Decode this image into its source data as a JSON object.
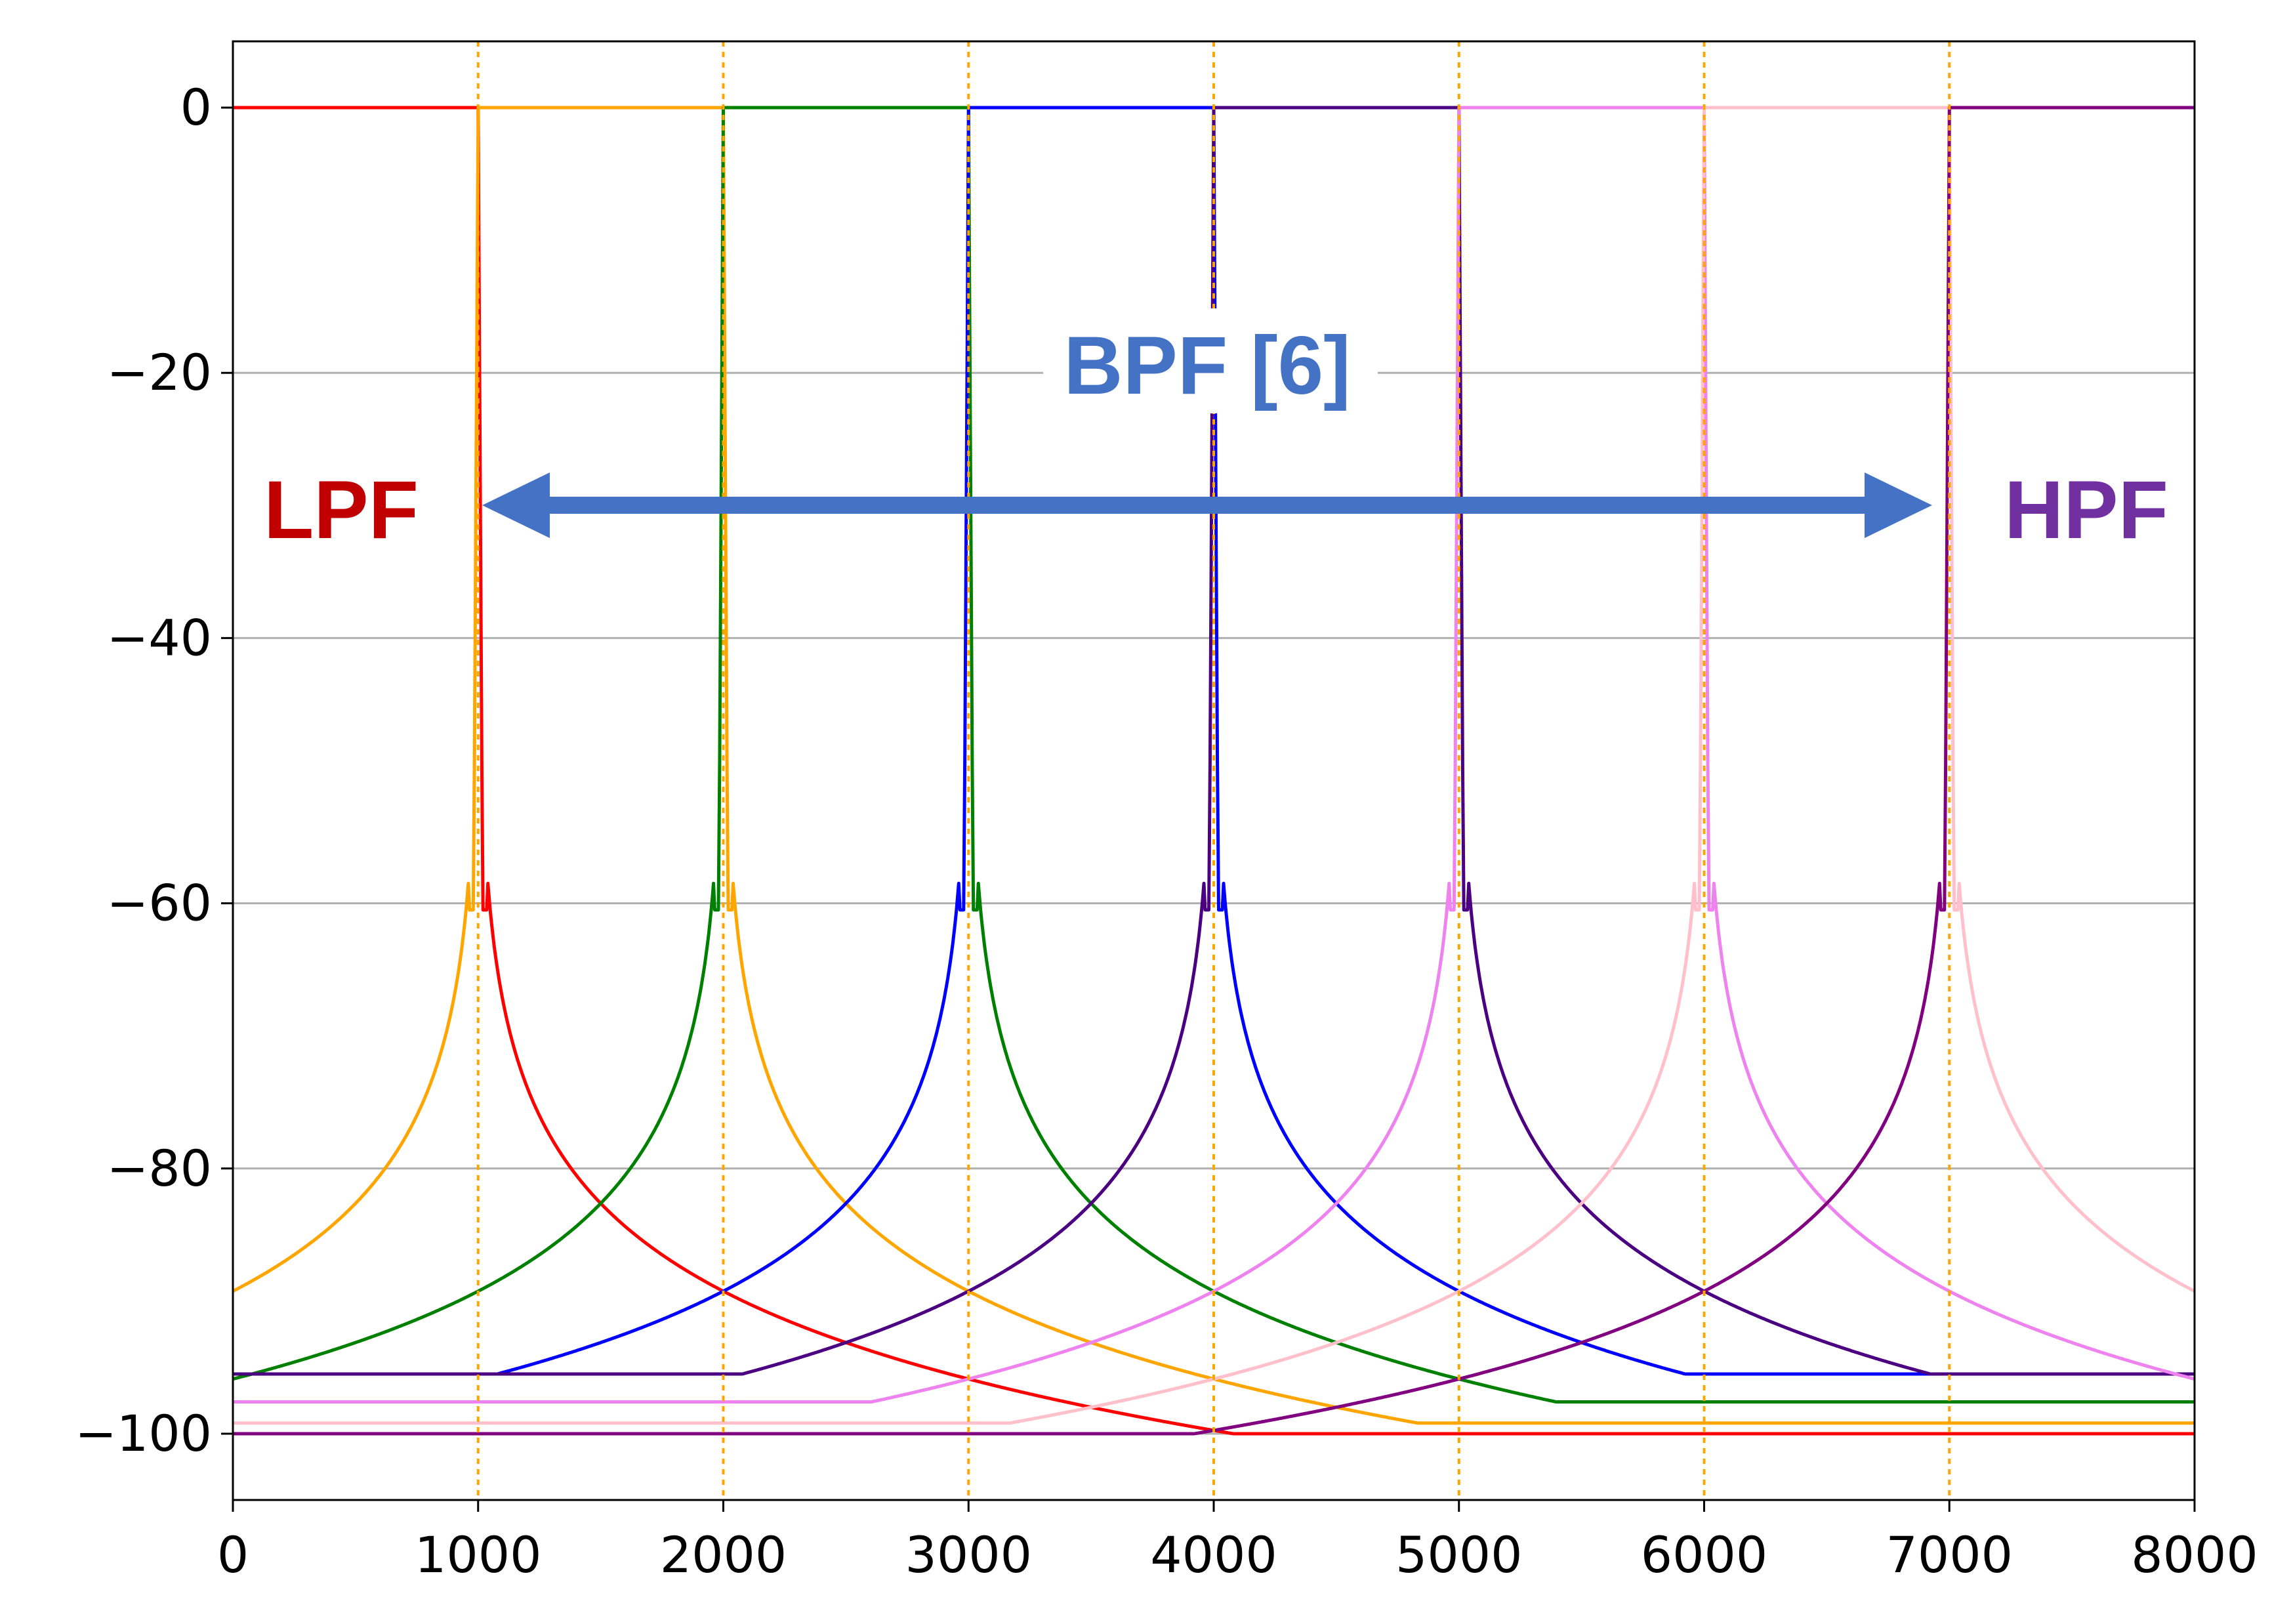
{
  "chart_data": {
    "type": "line",
    "xlim": [
      0,
      8000
    ],
    "ylim": [
      -105,
      5
    ],
    "x_ticks": [
      "0",
      "1000",
      "2000",
      "3000",
      "4000",
      "5000",
      "6000",
      "7000",
      "8000"
    ],
    "y_ticks": [
      "0",
      "−20",
      "−40",
      "−60",
      "−80",
      "−100"
    ],
    "grid": "horizontal",
    "band_edges": [
      1000,
      2000,
      3000,
      4000,
      5000,
      6000,
      7000
    ],
    "band_edge_color": "#ffa500",
    "series": [
      {
        "color": "#ff0000",
        "band": [
          0,
          1000
        ],
        "min_db": -100
      },
      {
        "color": "#ffa500",
        "band": [
          1000,
          2000
        ],
        "min_db": -99.2
      },
      {
        "color": "#008000",
        "band": [
          2000,
          3000
        ],
        "min_db": -97.6
      },
      {
        "color": "#0000ff",
        "band": [
          3000,
          4000
        ],
        "min_db": -95.5
      },
      {
        "color": "#4b0082",
        "band": [
          4000,
          5000
        ],
        "min_db": -95.5
      },
      {
        "color": "#ee82ee",
        "band": [
          5000,
          6000
        ],
        "min_db": -97.6
      },
      {
        "color": "#ffc0cb",
        "band": [
          6000,
          7000
        ],
        "min_db": -99.2
      },
      {
        "color": "#800080",
        "band": [
          7000,
          8000
        ],
        "min_db": -100
      }
    ]
  },
  "annotations": {
    "lpf": {
      "text": "LPF",
      "color": "#c00000"
    },
    "hpf": {
      "text": "HPF",
      "color": "#7030a0"
    },
    "bpf": {
      "text": "BPF [6]",
      "color": "#4472c4"
    },
    "arrow_color": "#4472c4"
  }
}
